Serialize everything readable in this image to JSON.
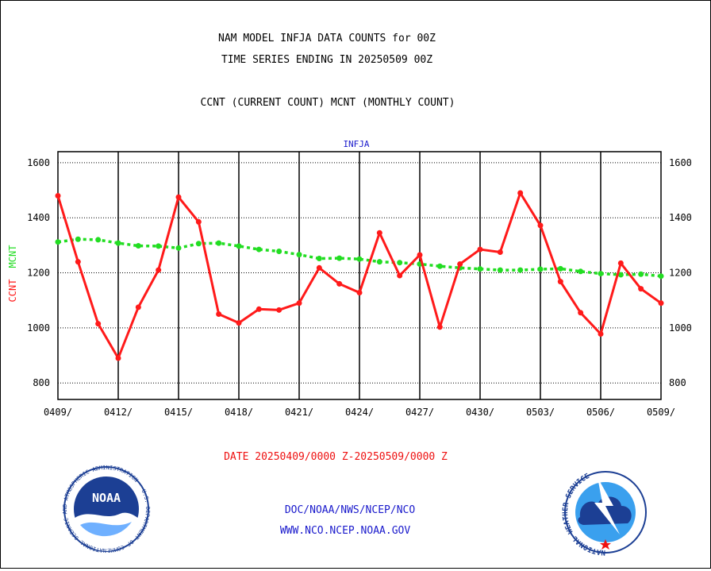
{
  "header": {
    "title_line1": "NAM MODEL INFJA DATA COUNTS for 00Z",
    "title_line2": "TIME SERIES ENDING IN 20250509 00Z",
    "subtitle": "CCNT (CURRENT COUNT) MCNT (MONTHLY COUNT)"
  },
  "footer": {
    "date_range": "DATE 20250409/0000 Z-20250509/0000 Z",
    "org_line": "DOC/NOAA/NWS/NCEP/NCO",
    "url_line": "WWW.NCO.NCEP.NOAA.GOV"
  },
  "logos": {
    "left": {
      "text": "NOAA",
      "ring_text": "NATIONAL OCEANIC AND ATMOSPHERIC ADMINISTRATION · U.S. DEPARTMENT OF COMMERCE"
    },
    "right": {
      "ring_text": "NATIONAL WEATHER SERVICE"
    }
  },
  "colors": {
    "ccnt": "#ff1a1a",
    "mcnt": "#22dd22",
    "panel_label": "#1a1acc",
    "footer_red": "#ee1111",
    "footer_blue": "#1a1acc"
  },
  "chart_data": {
    "type": "line",
    "title": "INFJA",
    "ylabel_ccnt": "CCNT",
    "ylabel_mcnt": "MCNT",
    "ylim": [
      740,
      1640
    ],
    "yticks": [
      800,
      1000,
      1200,
      1400,
      1600
    ],
    "xticks": [
      "0409/",
      "0412/",
      "0415/",
      "0418/",
      "0421/",
      "0424/",
      "0427/",
      "0430/",
      "0503/",
      "0506/",
      "0509/"
    ],
    "x": [
      "04/09",
      "04/10",
      "04/11",
      "04/12",
      "04/13",
      "04/14",
      "04/15",
      "04/16",
      "04/17",
      "04/18",
      "04/19",
      "04/20",
      "04/21",
      "04/22",
      "04/23",
      "04/24",
      "04/25",
      "04/26",
      "04/27",
      "04/28",
      "04/29",
      "04/30",
      "05/01",
      "05/02",
      "05/03",
      "05/04",
      "05/05",
      "05/06",
      "05/07",
      "05/08",
      "05/09"
    ],
    "series": [
      {
        "name": "CCNT",
        "values": [
          1480,
          1240,
          1015,
          890,
          1075,
          1210,
          1475,
          1385,
          1050,
          1018,
          1068,
          1065,
          1090,
          1218,
          1160,
          1128,
          1345,
          1190,
          1265,
          1003,
          1232,
          1285,
          1275,
          1490,
          1372,
          1168,
          1055,
          978,
          1235,
          1142,
          1090
        ]
      },
      {
        "name": "MCNT",
        "values": [
          1312,
          1322,
          1320,
          1308,
          1298,
          1297,
          1290,
          1306,
          1308,
          1297,
          1285,
          1278,
          1266,
          1252,
          1253,
          1250,
          1240,
          1237,
          1232,
          1224,
          1218,
          1214,
          1210,
          1210,
          1213,
          1215,
          1205,
          1197,
          1193,
          1195,
          1188
        ]
      }
    ],
    "grid": true
  }
}
